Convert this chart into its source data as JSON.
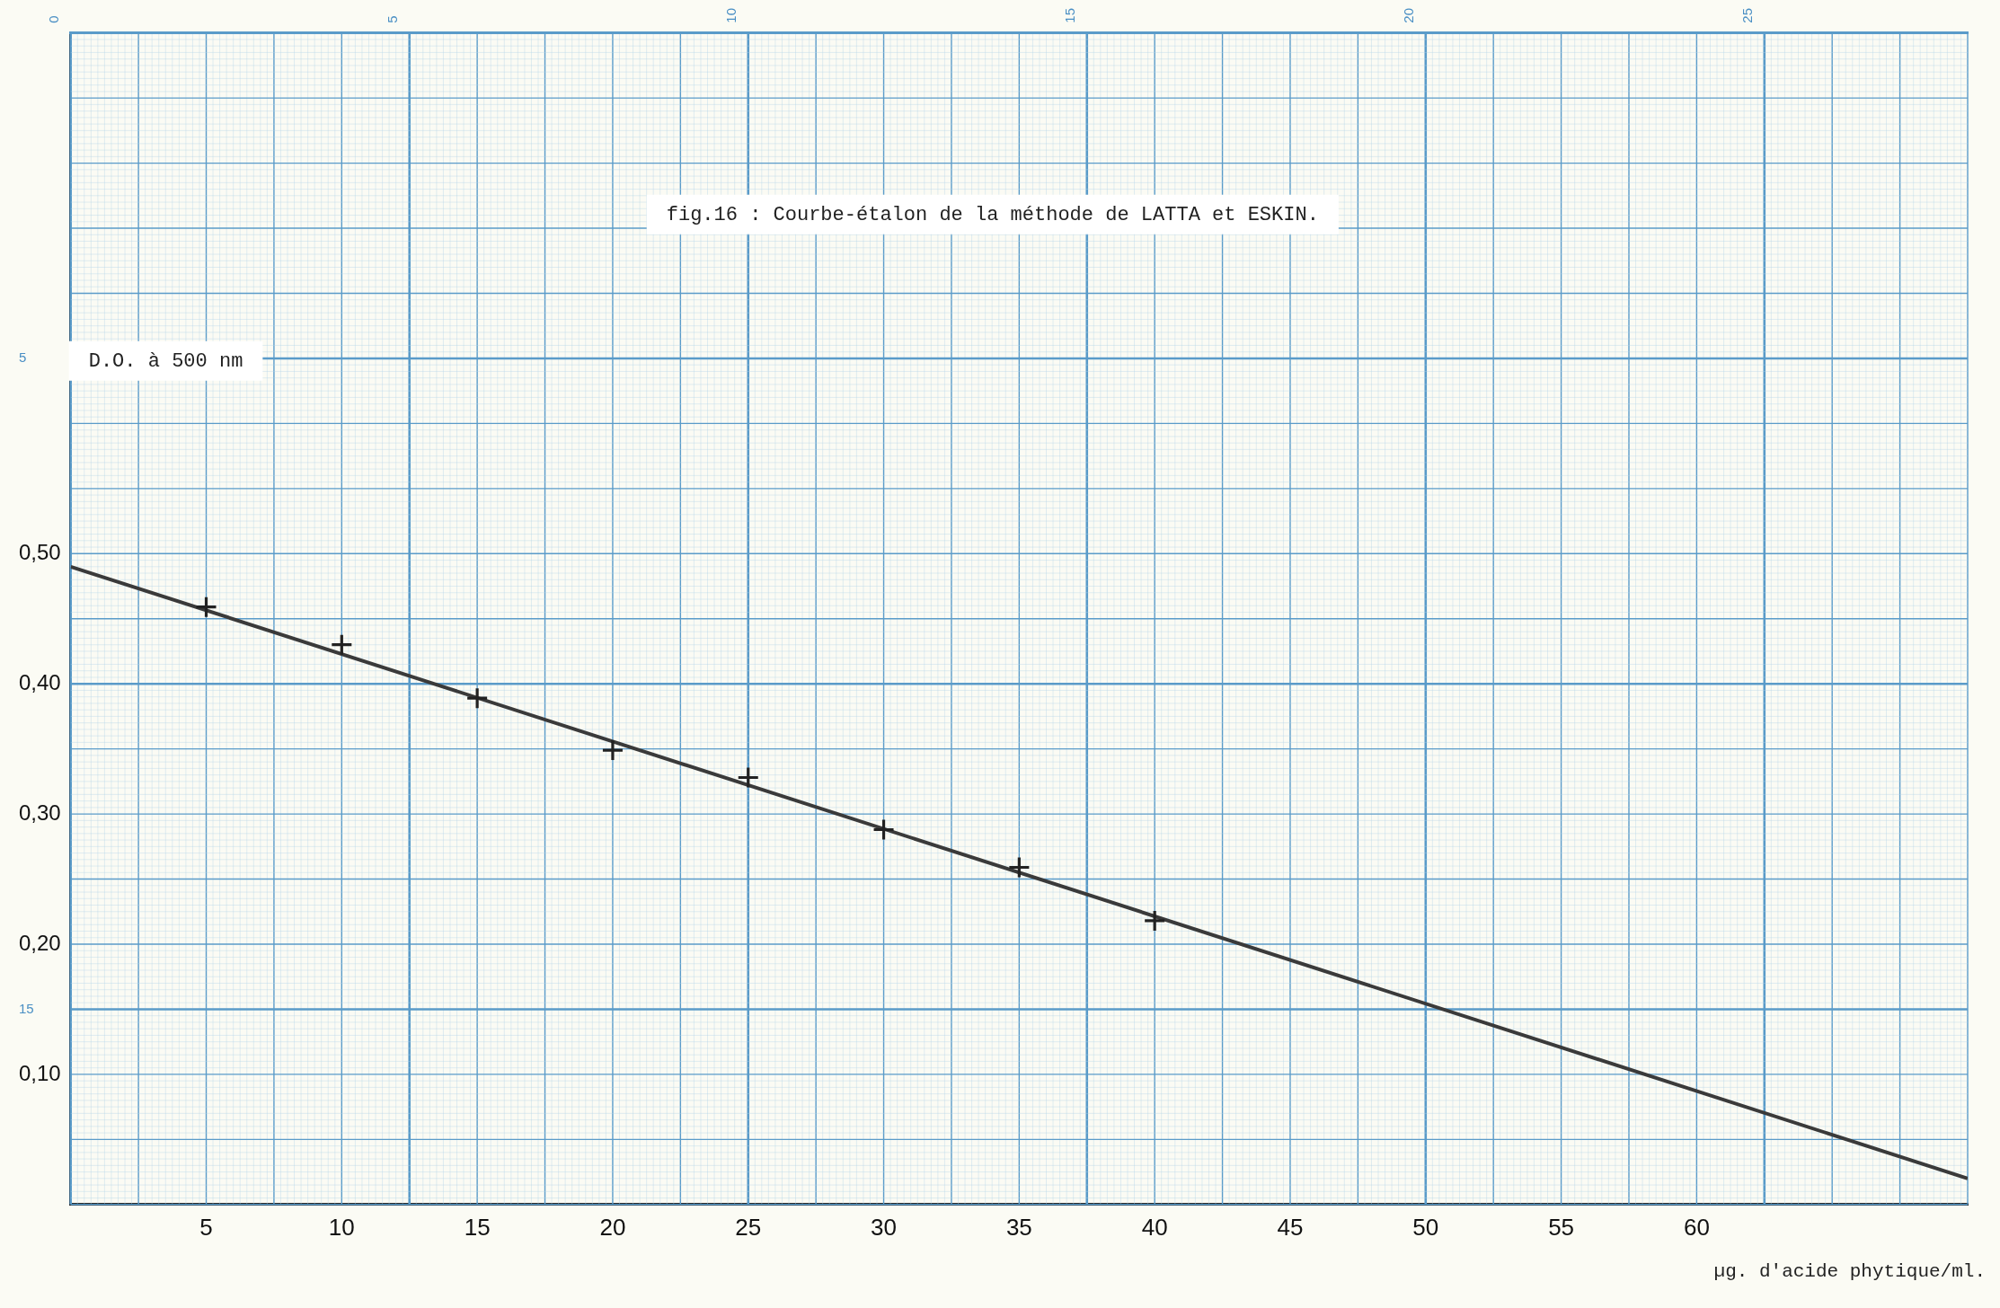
{
  "chart_data": {
    "type": "scatter",
    "title": "fig.16 : Courbe-étalon de la méthode de LATTA et ESKIN.",
    "xlabel": "µg. d'acide phytique/ml.",
    "ylabel": "D.O. à 500 nm",
    "xlim": [
      0,
      70
    ],
    "xticks": [
      5,
      10,
      15,
      20,
      25,
      30,
      35,
      40,
      45,
      50,
      55,
      60
    ],
    "ylim": [
      0,
      0.9
    ],
    "yticks": [
      {
        "value": 0.1,
        "label": "0,10"
      },
      {
        "value": 0.2,
        "label": "0,20"
      },
      {
        "value": 0.3,
        "label": "0,30"
      },
      {
        "value": 0.4,
        "label": "0,40"
      },
      {
        "value": 0.5,
        "label": "0,50"
      }
    ],
    "x2lim": [
      0,
      28
    ],
    "x2ticks": [
      0,
      5,
      10,
      15,
      20,
      25
    ],
    "y2lim": [
      18,
      0
    ],
    "y2ticks": [
      5,
      15
    ],
    "grid": true,
    "series": [
      {
        "type": "scatter",
        "color": "#222222",
        "marker": "cross",
        "x": [
          5,
          10,
          15,
          20,
          25,
          30,
          35,
          40
        ],
        "values": [
          0.459,
          0.43,
          0.389,
          0.349,
          0.328,
          0.288,
          0.259,
          0.218
        ]
      },
      {
        "type": "line",
        "color": "#3a3a3a",
        "marker": "none",
        "x": [
          0,
          70
        ],
        "values": [
          0.49,
          0.02
        ]
      }
    ]
  }
}
